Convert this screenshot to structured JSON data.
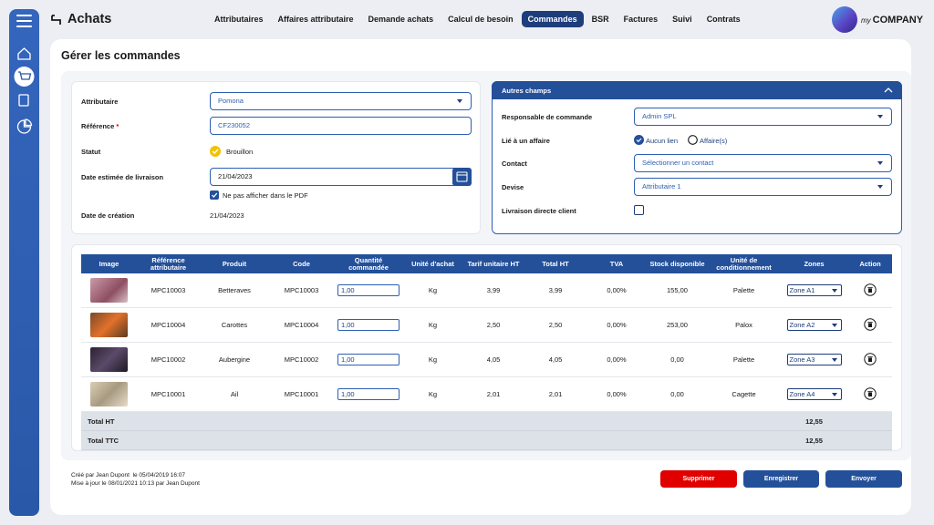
{
  "header": {
    "title": "Achats",
    "nav": [
      "Attributaires",
      "Affaires attributaire",
      "Demande achats",
      "Calcul de besoin",
      "Commandes",
      "BSR",
      "Factures",
      "Suivi",
      "Contrats"
    ]
  },
  "logo": {
    "mark": "my",
    "text": "COMPANY"
  },
  "page_title": "Gérer les commandes",
  "form": {
    "fields": [
      {
        "label": "Attributaire",
        "value": "Pomona"
      },
      {
        "label": "Référence",
        "required": "*",
        "value": "CF230052"
      },
      {
        "label": "Statut",
        "value": "Brouillon"
      },
      {
        "label": "Date estimée de livraison",
        "value": "21/04/2023",
        "checkbox": "Ne pas afficher dans le PDF"
      },
      {
        "label": "Date de création",
        "value": "21/04/2023"
      }
    ]
  },
  "other_fields": {
    "title": "Autres champs",
    "fields": [
      {
        "label": "Responsable de commande",
        "value": "Admin SPL"
      },
      {
        "label": "Lié à un affaire",
        "options": [
          "Aucun lien",
          "Affaire(s)"
        ]
      },
      {
        "label": "Contact",
        "value": "Sélectionner un contact"
      },
      {
        "label": "Devise",
        "value": "Attributaire 1"
      },
      {
        "label": "Livraison directe client"
      }
    ]
  },
  "table": {
    "columns": [
      "Image",
      "Référence attributaire",
      "Produit",
      "Code",
      "Quantité commandée",
      "Unité d'achat",
      "Tarif unitaire HT",
      "Total HT",
      "TVA",
      "Stock disponible",
      "Unité de conditionnement",
      "Zones",
      "Action"
    ],
    "rows": [
      [
        "MPC10003",
        "Betteraves",
        "MPC10003",
        "1,00",
        "Kg",
        "3,99",
        "3,99",
        "0,00%",
        "155,00",
        "Palette",
        "Zone A1"
      ],
      [
        "MPC10004",
        "Carottes",
        "MPC10004",
        "1,00",
        "Kg",
        "2,50",
        "2,50",
        "0,00%",
        "253,00",
        "Palox",
        "Zone A2"
      ],
      [
        "MPC10002",
        "Aubergine",
        "MPC10002",
        "1,00",
        "Kg",
        "4,05",
        "4,05",
        "0,00%",
        "0,00",
        "Palette",
        "Zone A3"
      ],
      [
        "MPC10001",
        "Ail",
        "MPC10001",
        "1,00",
        "Kg",
        "2,01",
        "2,01",
        "0,00%",
        "0,00",
        "Cagette",
        "Zone A4"
      ]
    ],
    "totals": [
      {
        "label": "Total HT",
        "value": "12,55"
      },
      {
        "label": "Total TTC",
        "value": "12,55"
      }
    ]
  },
  "footer": {
    "created": "Créé par Jean Dupont  le 05/04/2019 16:07",
    "updated": "Mise à jour le 08/01/2021 10:13 par Jean Dupont"
  },
  "buttons": [
    "Supprimer",
    "Enregistrer",
    "Envoyer"
  ]
}
